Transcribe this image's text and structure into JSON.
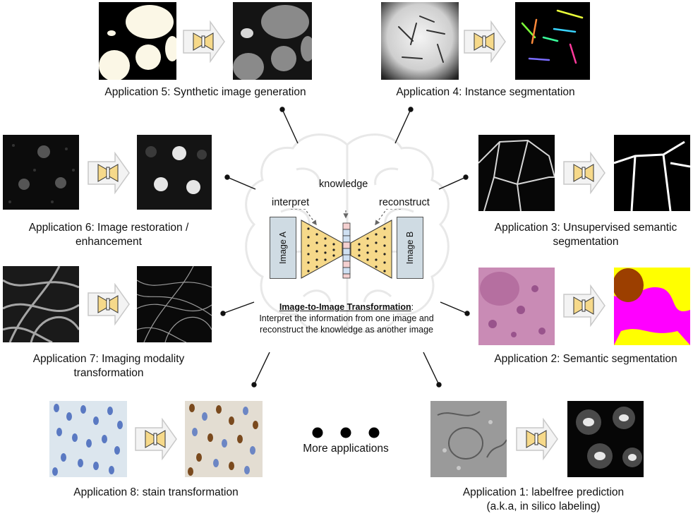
{
  "center": {
    "knowledge_label": "knowledge",
    "interpret_label": "interpret",
    "reconstruct_label": "reconstruct",
    "image_a_label": "Image A",
    "image_b_label": "Image B",
    "title": "Image-to-Image Transformation",
    "title_suffix": ":",
    "description_line1": "Interpret the information from one image and",
    "description_line2": "reconstruct the knowledge as another image"
  },
  "applications": {
    "app1": {
      "line1": "Application 1: labelfree prediction",
      "line2": "(a.k.a, in silico labeling)"
    },
    "app2": {
      "line1": "Application 2: Semantic segmentation"
    },
    "app3": {
      "line1": "Application 3: Unsupervised semantic",
      "line2": "segmentation"
    },
    "app4": {
      "line1": "Application 4: Instance segmentation"
    },
    "app5": {
      "line1": "Application 5: Synthetic image generation"
    },
    "app6": {
      "line1": "Application 6: Image restoration /",
      "line2": "enhancement"
    },
    "app7": {
      "line1": "Application 7: Imaging modality",
      "line2": "transformation"
    },
    "app8": {
      "line1": "Application 8: stain transformation"
    }
  },
  "more": {
    "label": "More applications"
  },
  "colors": {
    "bowtie_fill": "#f6d98a",
    "bowtie_stroke": "#333333",
    "image_box_fill": "#cfdbe3",
    "arrow_fill": "#f2f2f2",
    "arrow_stroke": "#c8c8c8",
    "brain_stroke": "#e6e6e6",
    "magenta": "#ff00ff",
    "yellow": "#ffff00",
    "brown": "#9c3f00",
    "he_pink": "#c97fb0"
  }
}
